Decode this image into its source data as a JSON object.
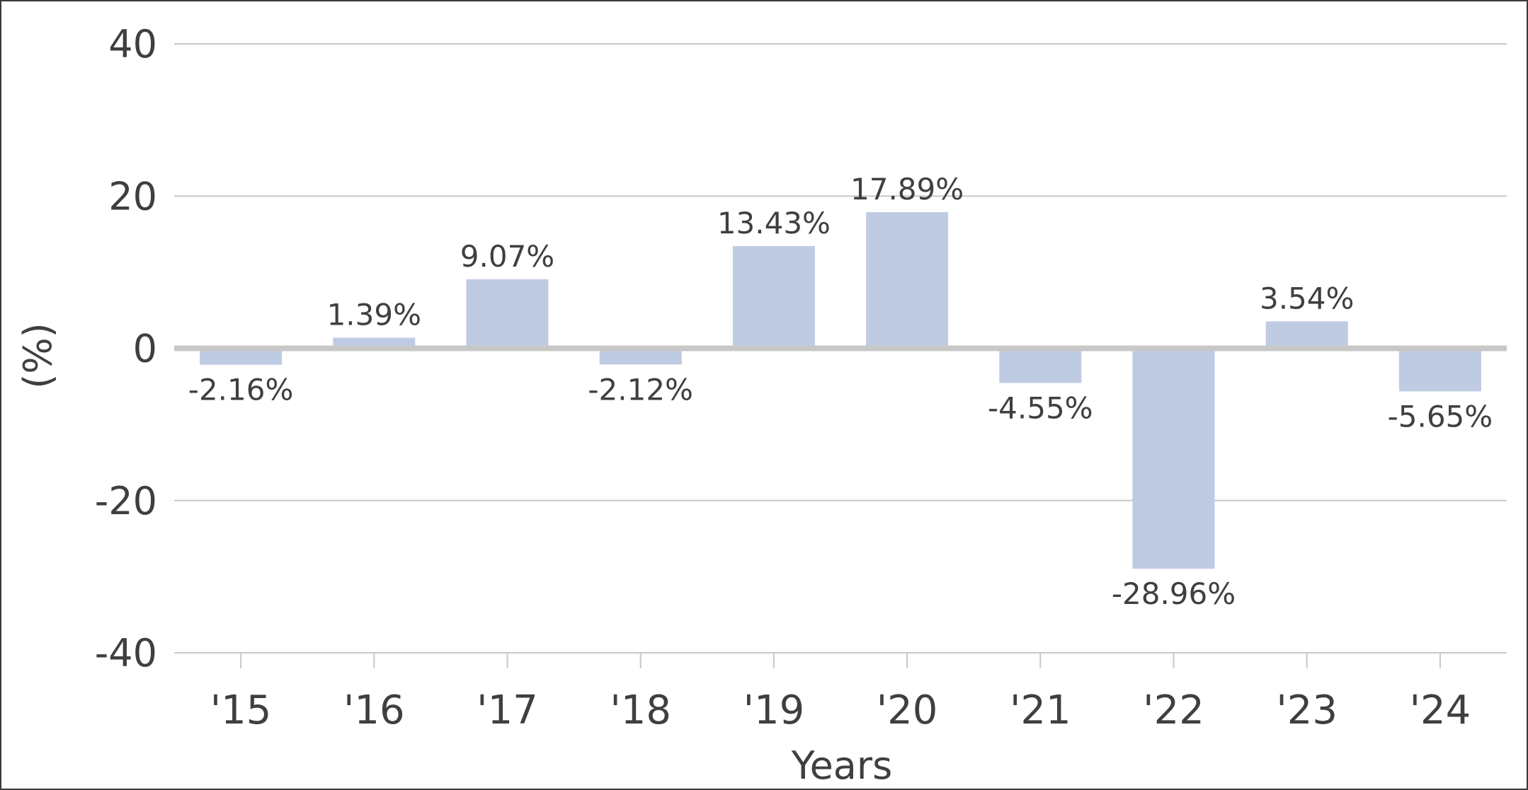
{
  "chart_data": {
    "type": "bar",
    "categories": [
      "'15",
      "'16",
      "'17",
      "'18",
      "'19",
      "'20",
      "'21",
      "'22",
      "'23",
      "'24"
    ],
    "values": [
      -2.16,
      1.39,
      9.07,
      -2.12,
      13.43,
      17.89,
      -4.55,
      -28.96,
      3.54,
      -5.65
    ],
    "data_labels": [
      "-2.16%",
      "1.39%",
      "9.07%",
      "-2.12%",
      "13.43%",
      "17.89%",
      "-4.55%",
      "-28.96%",
      "3.54%",
      "-5.65%"
    ],
    "xlabel": "Years",
    "ylabel": "(%)",
    "ylim": [
      -40,
      40
    ],
    "yticks": [
      40,
      20,
      0,
      -20,
      -40
    ],
    "ytick_labels": [
      "40",
      "20",
      "0",
      "-20",
      "-40"
    ],
    "grid": true,
    "colors": {
      "bar": "#bfcbe3",
      "gridline": "#c8c8c8",
      "zero_line": "#c8c8c8",
      "text": "#3f3f41",
      "frame": "#3a3a3a"
    }
  }
}
